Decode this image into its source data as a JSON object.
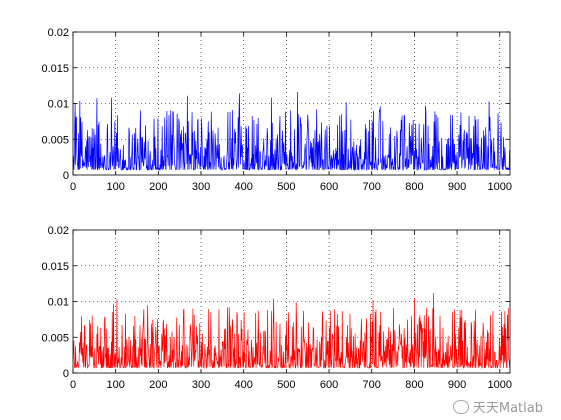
{
  "chart_data": [
    {
      "type": "line",
      "series_color": "#0000ff",
      "xlim": [
        0,
        1024
      ],
      "ylim": [
        0,
        0.02
      ],
      "xticks": [
        0,
        100,
        200,
        300,
        400,
        500,
        600,
        700,
        800,
        900,
        1000
      ],
      "yticks": [
        0,
        0.005,
        0.01,
        0.015,
        0.02
      ],
      "xtick_labels": [
        "0",
        "100",
        "200",
        "300",
        "400",
        "500",
        "600",
        "700",
        "800",
        "900",
        "1000"
      ],
      "ytick_labels": [
        "0",
        "0.005",
        "0.01",
        "0.015",
        "0.02"
      ],
      "grid": true,
      "peaks": [
        {
          "x": 90,
          "y": 0.0108
        },
        {
          "x": 390,
          "y": 0.0114
        },
        {
          "x": 465,
          "y": 0.0108
        },
        {
          "x": 640,
          "y": 0.0102
        },
        {
          "x": 720,
          "y": 0.0096
        }
      ],
      "n_points": 1024,
      "baseline": 0.0012
    },
    {
      "type": "line",
      "series_color": "#ff0000",
      "xlim": [
        0,
        1024
      ],
      "ylim": [
        0,
        0.02
      ],
      "xticks": [
        0,
        100,
        200,
        300,
        400,
        500,
        600,
        700,
        800,
        900,
        1000
      ],
      "yticks": [
        0,
        0.005,
        0.01,
        0.015,
        0.02
      ],
      "xtick_labels": [
        "0",
        "100",
        "200",
        "300",
        "400",
        "500",
        "600",
        "700",
        "800",
        "900",
        "1000"
      ],
      "ytick_labels": [
        "0",
        "0.005",
        "0.01",
        "0.015",
        "0.02"
      ],
      "grid": true,
      "peaks": [
        {
          "x": 95,
          "y": 0.0097
        },
        {
          "x": 175,
          "y": 0.0095
        },
        {
          "x": 470,
          "y": 0.0104
        },
        {
          "x": 800,
          "y": 0.0105
        },
        {
          "x": 845,
          "y": 0.0112
        }
      ],
      "n_points": 1024,
      "baseline": 0.0012
    }
  ],
  "watermark": {
    "text": "天天Matlab",
    "icon": "wechat-icon"
  }
}
